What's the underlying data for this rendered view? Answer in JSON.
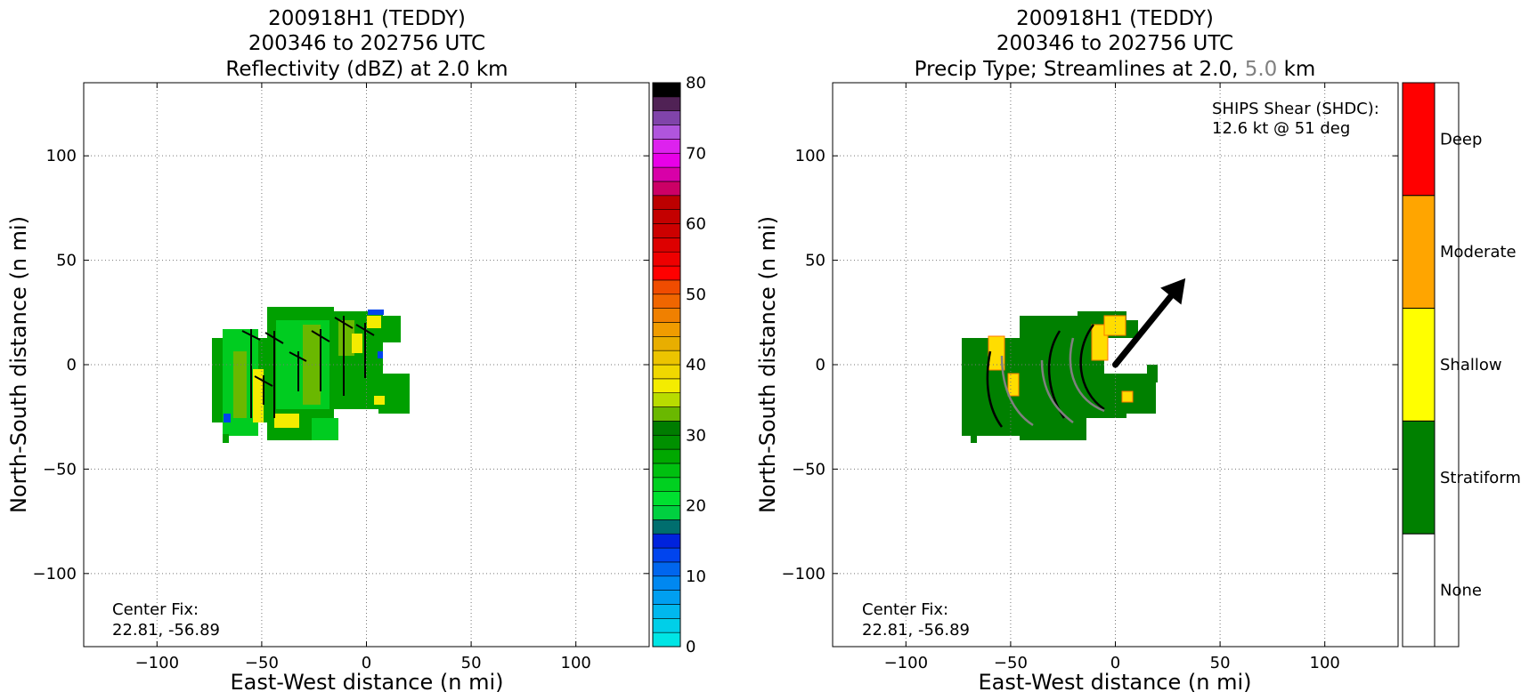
{
  "chart_data": [
    {
      "type": "heatmap",
      "title_lines": [
        "200918H1 (TEDDY)",
        "200346 to 202756 UTC",
        "Reflectivity (dBZ) at 2.0 km"
      ],
      "xlabel": "East-West distance (n mi)",
      "ylabel": "North-South distance (n mi)",
      "xlim": [
        -135,
        135
      ],
      "ylim": [
        -135,
        135
      ],
      "xticks": [
        -100,
        -50,
        0,
        50,
        100
      ],
      "yticks": [
        -100,
        -50,
        0,
        50,
        100
      ],
      "grid": true,
      "annotation": [
        "Center Fix:",
        "22.81, -56.89"
      ],
      "colorbar": {
        "label_values": [
          0,
          10,
          20,
          30,
          40,
          50,
          60,
          70,
          80
        ],
        "range": [
          0,
          80
        ],
        "colors": [
          "#00e5e5",
          "#00cfe8",
          "#00b8ee",
          "#009ff0",
          "#0088f0",
          "#0066ee",
          "#0044ee",
          "#0022dd",
          "#006e6e",
          "#00d040",
          "#00e030",
          "#00d020",
          "#00c010",
          "#00a800",
          "#009000",
          "#007c00",
          "#6ab800",
          "#b8dc00",
          "#f4ec00",
          "#f0d800",
          "#ecc400",
          "#e8ae00",
          "#f09c00",
          "#f08000",
          "#f06600",
          "#f04c00",
          "#ff0000",
          "#ee0000",
          "#dd0000",
          "#cc0000",
          "#c40000",
          "#bc0000",
          "#cc0066",
          "#d800a8",
          "#e800e8",
          "#dd22ee",
          "#b055dd",
          "#8044aa",
          "#502255",
          "#000000"
        ]
      }
    },
    {
      "type": "heatmap",
      "title_lines": [
        "200918H1 (TEDDY)",
        "200346 to 202756 UTC"
      ],
      "title_line3": {
        "prefix": "Precip Type; Streamlines at 2.0,",
        "gray_part": "5.0",
        "suffix": "km"
      },
      "xlabel": "East-West distance (n mi)",
      "ylabel": "North-South distance (n mi)",
      "xlim": [
        -135,
        135
      ],
      "ylim": [
        -135,
        135
      ],
      "xticks": [
        -100,
        -50,
        0,
        50,
        100
      ],
      "yticks": [
        -100,
        -50,
        0,
        50,
        100
      ],
      "grid": true,
      "annotation": [
        "Center Fix:",
        "22.81, -56.89"
      ],
      "shear_text": [
        "SHIPS Shear (SHDC):",
        "12.6 kt @ 51 deg"
      ],
      "shear": {
        "speed_kt": 12.6,
        "direction_deg": 51
      },
      "categories": [
        {
          "label": "Deep",
          "color": "#ff0000"
        },
        {
          "label": "Moderate",
          "color": "#ffa500"
        },
        {
          "label": "Shallow",
          "color": "#ffff00"
        },
        {
          "label": "Stratiform",
          "color": "#008000"
        },
        {
          "label": "None",
          "color": "#ffffff"
        }
      ]
    }
  ]
}
